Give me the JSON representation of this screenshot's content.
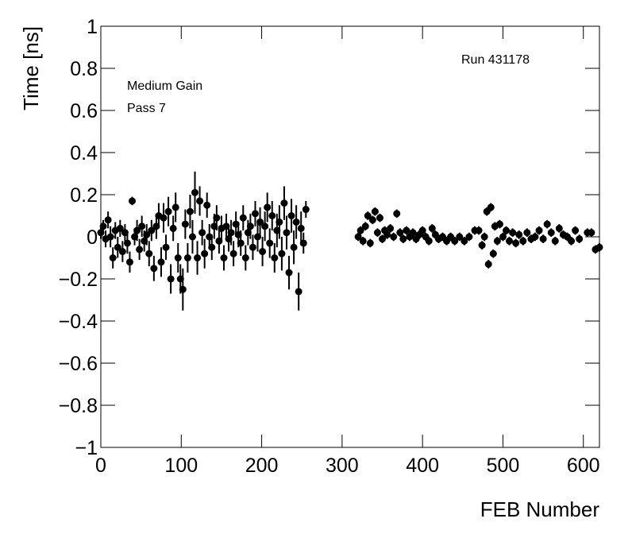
{
  "chart_data": {
    "type": "scatter",
    "xlabel": "FEB Number",
    "ylabel": "Time [ns]",
    "annotations": [
      "Medium Gain",
      "Pass 7",
      "Run 431178"
    ],
    "xlim": [
      0,
      620
    ],
    "ylim": [
      -1,
      1
    ],
    "xticks": [
      0,
      100,
      200,
      300,
      400,
      500,
      600
    ],
    "yticks": [
      {
        "value": -1,
        "label": "−1"
      },
      {
        "value": -0.8,
        "label": "−0.8"
      },
      {
        "value": -0.6,
        "label": "−0.6"
      },
      {
        "value": -0.4,
        "label": "−0.4"
      },
      {
        "value": -0.2,
        "label": "−0.2"
      },
      0,
      0.2,
      0.4,
      0.6,
      0.8,
      1
    ],
    "color": "#000000",
    "x": [
      0,
      3,
      6,
      9,
      12,
      15,
      18,
      21,
      24,
      27,
      30,
      33,
      36,
      39,
      42,
      45,
      48,
      51,
      54,
      57,
      60,
      63,
      66,
      69,
      72,
      75,
      78,
      81,
      84,
      87,
      90,
      93,
      96,
      99,
      102,
      105,
      108,
      111,
      114,
      117,
      120,
      123,
      126,
      129,
      132,
      135,
      138,
      141,
      144,
      147,
      150,
      153,
      156,
      159,
      162,
      165,
      168,
      171,
      174,
      177,
      180,
      183,
      186,
      189,
      192,
      195,
      198,
      201,
      204,
      207,
      210,
      213,
      216,
      219,
      222,
      225,
      228,
      231,
      234,
      237,
      240,
      243,
      246,
      249,
      252,
      255,
      320,
      323,
      326,
      329,
      332,
      335,
      338,
      341,
      344,
      347,
      350,
      353,
      356,
      360,
      364,
      368,
      372,
      376,
      380,
      384,
      388,
      392,
      396,
      400,
      404,
      408,
      412,
      416,
      420,
      425,
      430,
      435,
      440,
      446,
      452,
      458,
      465,
      470,
      474,
      477,
      480,
      482,
      485,
      488,
      490,
      493,
      496,
      500,
      504,
      508,
      512,
      516,
      520,
      525,
      530,
      535,
      540,
      545,
      550,
      555,
      560,
      565,
      570,
      575,
      580,
      585,
      590,
      595,
      605,
      610,
      615,
      620
    ],
    "values": [
      0.02,
      0.05,
      -0.01,
      0.08,
      0.0,
      -0.1,
      0.03,
      -0.05,
      0.04,
      -0.07,
      0.02,
      -0.03,
      -0.12,
      0.17,
      0.0,
      0.03,
      -0.06,
      0.05,
      -0.02,
      0.01,
      -0.08,
      0.03,
      -0.15,
      0.05,
      0.1,
      -0.12,
      0.09,
      -0.05,
      0.12,
      -0.2,
      0.04,
      0.14,
      -0.1,
      -0.2,
      -0.25,
      0.06,
      -0.1,
      0.12,
      0.0,
      0.21,
      -0.1,
      0.17,
      0.02,
      -0.08,
      0.15,
      0.0,
      -0.05,
      0.05,
      0.09,
      -0.02,
      0.04,
      -0.1,
      0.05,
      -0.01,
      0.02,
      -0.08,
      0.06,
      0.01,
      -0.03,
      0.09,
      -0.1,
      0.02,
      0.05,
      -0.05,
      0.11,
      0.0,
      0.07,
      -0.07,
      0.05,
      0.14,
      -0.03,
      0.1,
      -0.1,
      0.03,
      0.07,
      -0.08,
      0.16,
      0.02,
      -0.17,
      0.1,
      -0.05,
      0.07,
      -0.26,
      0.04,
      -0.03,
      0.13,
      0.0,
      0.03,
      -0.02,
      0.05,
      0.1,
      -0.03,
      0.08,
      0.12,
      0.02,
      0.09,
      -0.01,
      0.03,
      0.01,
      0.04,
      0.0,
      0.11,
      0.02,
      -0.01,
      0.03,
      0.0,
      0.02,
      -0.01,
      0.01,
      0.03,
      0.0,
      -0.02,
      0.04,
      0.01,
      -0.01,
      0.0,
      -0.02,
      0.0,
      -0.02,
      0.0,
      -0.02,
      0.0,
      0.03,
      0.03,
      -0.04,
      0.0,
      0.12,
      -0.13,
      0.14,
      -0.08,
      0.05,
      -0.02,
      0.06,
      0.0,
      0.03,
      -0.02,
      0.02,
      -0.03,
      0.01,
      -0.02,
      0.02,
      -0.01,
      0.0,
      0.03,
      -0.01,
      0.06,
      0.02,
      -0.02,
      0.04,
      0.01,
      0.0,
      -0.02,
      0.03,
      -0.01,
      0.02,
      0.02,
      -0.06,
      -0.05
    ],
    "errors": [
      0.03,
      0.03,
      0.04,
      0.04,
      0.05,
      0.05,
      0.04,
      0.05,
      0.04,
      0.05,
      0.04,
      0.05,
      0.05,
      0.02,
      0.04,
      0.05,
      0.05,
      0.05,
      0.05,
      0.05,
      0.06,
      0.05,
      0.06,
      0.06,
      0.06,
      0.07,
      0.07,
      0.06,
      0.07,
      0.07,
      0.06,
      0.07,
      0.07,
      0.07,
      0.1,
      0.07,
      0.07,
      0.08,
      0.08,
      0.1,
      0.08,
      0.07,
      0.06,
      0.07,
      0.06,
      0.06,
      0.06,
      0.06,
      0.06,
      0.06,
      0.06,
      0.06,
      0.06,
      0.06,
      0.06,
      0.06,
      0.06,
      0.06,
      0.06,
      0.06,
      0.06,
      0.06,
      0.06,
      0.06,
      0.06,
      0.07,
      0.07,
      0.07,
      0.07,
      0.07,
      0.07,
      0.07,
      0.07,
      0.08,
      0.08,
      0.08,
      0.08,
      0.08,
      0.08,
      0.08,
      0.08,
      0.08,
      0.09,
      0.08,
      0.05,
      0.04,
      0.02,
      0.02,
      0.02,
      0.02,
      0.02,
      0.02,
      0.02,
      0.02,
      0.02,
      0.02,
      0.02,
      0.02,
      0.02,
      0.02,
      0.02,
      0.02,
      0.02,
      0.02,
      0.02,
      0.02,
      0.02,
      0.02,
      0.02,
      0.02,
      0.02,
      0.02,
      0.02,
      0.02,
      0.02,
      0.02,
      0.02,
      0.02,
      0.02,
      0.02,
      0.02,
      0.02,
      0.02,
      0.02,
      0.02,
      0.02,
      0.02,
      0.02,
      0.02,
      0.02,
      0.02,
      0.02,
      0.02,
      0.02,
      0.02,
      0.02,
      0.02,
      0.02,
      0.02,
      0.02,
      0.02,
      0.02,
      0.02,
      0.02,
      0.02,
      0.02,
      0.02,
      0.02,
      0.02,
      0.02,
      0.02,
      0.02,
      0.02,
      0.02,
      0.02,
      0.02,
      0.02,
      0.02
    ]
  }
}
